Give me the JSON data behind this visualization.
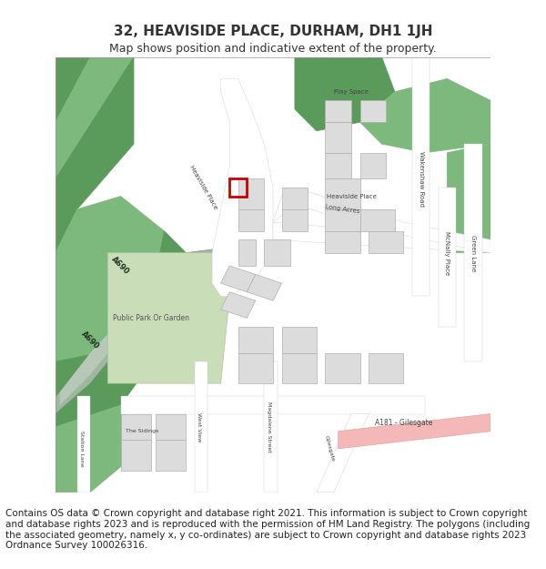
{
  "title": "32, HEAVISIDE PLACE, DURHAM, DH1 1JH",
  "subtitle": "Map shows position and indicative extent of the property.",
  "copyright_text": "Contains OS data © Crown copyright and database right 2021. This information is subject to Crown copyright and database rights 2023 and is reproduced with the permission of HM Land Registry. The polygons (including the associated geometry, namely x, y co-ordinates) are subject to Crown copyright and database rights 2023 Ordnance Survey 100026316.",
  "title_fontsize": 11,
  "subtitle_fontsize": 9,
  "copyright_fontsize": 7.5,
  "map_bg_color": "#f0eeeb",
  "road_color_light": "#ffffff",
  "road_color_medium": "#e8e8e8",
  "green_color": "#7db87d",
  "green_dark": "#5a9a5a",
  "park_color": "#c8e0b4",
  "building_color": "#dcdcdc",
  "building_outline": "#b0b0b0",
  "property_color": "#cc0000",
  "text_color": "#333333",
  "pink_road": "#f4b8b8",
  "fig_width": 6.0,
  "fig_height": 6.25
}
